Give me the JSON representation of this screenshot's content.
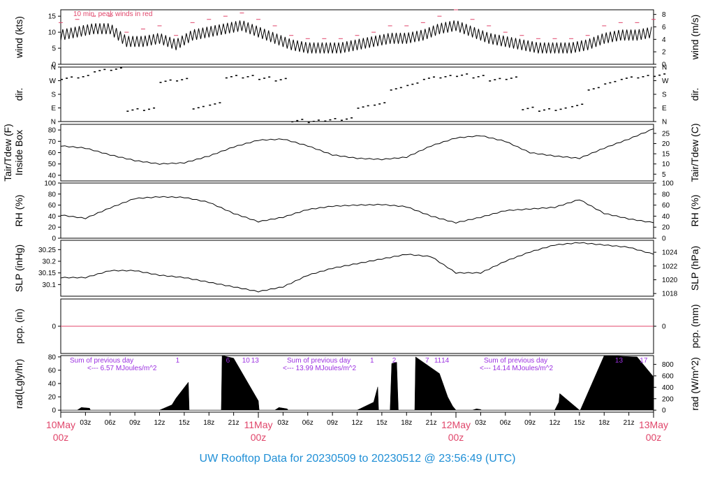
{
  "footer": "UW Rooftop Data for 20230509  to  20230512 @ 23:56:49  (UTC)",
  "colors": {
    "frame": "#000000",
    "accent": "#e0456a",
    "footer": "#1f8fd6",
    "solar_note": "#9b30e0",
    "precip_line": "#e0456a"
  },
  "x_axis": {
    "hour_ticks": [
      "03z",
      "06z",
      "09z",
      "12z",
      "15z",
      "18z",
      "21z",
      "03z",
      "06z",
      "09z",
      "12z",
      "15z",
      "18z",
      "21z",
      "03z",
      "06z",
      "09z",
      "12z",
      "15z",
      "18z",
      "21z"
    ],
    "hour_positions": [
      3,
      6,
      9,
      12,
      15,
      18,
      21,
      27,
      30,
      33,
      36,
      39,
      42,
      45,
      51,
      54,
      57,
      60,
      63,
      66,
      69
    ],
    "days": [
      {
        "date": "10May",
        "time": "00z",
        "hour": 0
      },
      {
        "date": "11May",
        "time": "00z",
        "hour": 24
      },
      {
        "date": "12May",
        "time": "00z",
        "hour": 48
      },
      {
        "date": "13May",
        "time": "00z",
        "hour": 72
      }
    ],
    "range_hours": [
      0,
      72
    ]
  },
  "chart_data": [
    {
      "id": "wind",
      "type": "line",
      "ylabel_left": "wind (kts)",
      "ylabel_right": "wind (m/s)",
      "ylim": [
        0,
        17
      ],
      "yticks_left": [
        0,
        5,
        10,
        15
      ],
      "yticks_right": [
        0,
        2,
        4,
        6,
        8
      ],
      "right_scale": 0.5144,
      "annotation": "10 min. peak winds in red",
      "x": [
        0,
        2,
        4,
        6,
        8,
        10,
        12,
        14,
        16,
        18,
        20,
        22,
        24,
        26,
        28,
        30,
        32,
        34,
        36,
        38,
        40,
        42,
        44,
        46,
        48,
        50,
        52,
        54,
        56,
        58,
        60,
        62,
        64,
        66,
        68,
        70,
        72
      ],
      "series": [
        {
          "name": "mean",
          "values": [
            9,
            10,
            11,
            11,
            7,
            7,
            8,
            6,
            9,
            10,
            11,
            12,
            10,
            8,
            6,
            5,
            5,
            5,
            6,
            7,
            8,
            8,
            9,
            11,
            12,
            10,
            8,
            7,
            6,
            5,
            5,
            5,
            6,
            8,
            9,
            9,
            10
          ]
        },
        {
          "name": "peak",
          "values": [
            13,
            14,
            15,
            15,
            10,
            11,
            12,
            9,
            13,
            14,
            15,
            16,
            14,
            12,
            9,
            8,
            8,
            8,
            9,
            10,
            12,
            12,
            13,
            15,
            17,
            14,
            12,
            10,
            9,
            8,
            8,
            8,
            9,
            12,
            13,
            13,
            14
          ]
        }
      ]
    },
    {
      "id": "dir",
      "type": "scatter",
      "ylabel_left": "dir.",
      "ylabel_right": "dir.",
      "ylim": [
        0,
        360
      ],
      "yticks_left": [
        "N",
        "E",
        "S",
        "W",
        "N"
      ],
      "yticks_right": [
        "N",
        "E",
        "S",
        "W",
        "N"
      ],
      "x": [
        0,
        2,
        4,
        6,
        8,
        10,
        12,
        14,
        16,
        18,
        20,
        22,
        24,
        26,
        28,
        30,
        32,
        34,
        36,
        38,
        40,
        42,
        44,
        46,
        48,
        50,
        52,
        54,
        56,
        58,
        60,
        62,
        64,
        66,
        68,
        70,
        72
      ],
      "values": [
        290,
        300,
        340,
        350,
        80,
        85,
        270,
        280,
        95,
        120,
        300,
        300,
        290,
        280,
        10,
        5,
        15,
        20,
        100,
        120,
        220,
        250,
        290,
        300,
        310,
        300,
        280,
        290,
        90,
        80,
        85,
        110,
        220,
        260,
        290,
        300,
        310
      ]
    },
    {
      "id": "temp",
      "type": "line",
      "ylabel_left": "Tair/Tdew (F) Inside Box",
      "ylabel_right": "Tair/Tdew (C)",
      "ylim": [
        35,
        85
      ],
      "yticks_left": [
        40,
        50,
        60,
        70,
        80
      ],
      "yticks_right": [
        5,
        10,
        15,
        20,
        25
      ],
      "x": [
        0,
        3,
        6,
        9,
        12,
        15,
        18,
        21,
        24,
        27,
        30,
        33,
        36,
        39,
        42,
        45,
        48,
        51,
        54,
        57,
        60,
        63,
        66,
        69,
        72
      ],
      "values": [
        66,
        64,
        58,
        53,
        50,
        51,
        57,
        65,
        71,
        72,
        66,
        58,
        55,
        54,
        56,
        66,
        73,
        75,
        70,
        60,
        57,
        55,
        64,
        72,
        81
      ]
    },
    {
      "id": "rh",
      "type": "line",
      "ylabel_left": "RH (%)",
      "ylabel_right": "RH (%)",
      "ylim": [
        0,
        100
      ],
      "yticks_left": [
        0,
        20,
        40,
        60,
        80,
        100
      ],
      "yticks_right": [
        0,
        20,
        40,
        60,
        80,
        100
      ],
      "x": [
        0,
        3,
        6,
        9,
        12,
        15,
        18,
        21,
        24,
        27,
        30,
        33,
        36,
        39,
        42,
        45,
        48,
        51,
        54,
        57,
        60,
        63,
        66,
        69,
        72
      ],
      "values": [
        42,
        36,
        55,
        72,
        75,
        74,
        65,
        45,
        30,
        38,
        52,
        58,
        60,
        61,
        57,
        40,
        28,
        38,
        50,
        53,
        56,
        70,
        45,
        35,
        28
      ]
    },
    {
      "id": "slp",
      "type": "line",
      "ylabel_left": "SLP (inHg)",
      "ylabel_right": "SLP (hPa)",
      "ylim": [
        30.05,
        30.29
      ],
      "yticks_left": [
        30.1,
        30.15,
        30.2,
        30.25
      ],
      "yticks_right": [
        1018,
        1020,
        1022,
        1024
      ],
      "x": [
        0,
        3,
        6,
        9,
        12,
        15,
        18,
        21,
        24,
        27,
        30,
        33,
        36,
        39,
        42,
        45,
        48,
        51,
        54,
        57,
        60,
        63,
        66,
        69,
        72
      ],
      "values": [
        30.13,
        30.13,
        30.16,
        30.16,
        30.14,
        30.13,
        30.11,
        30.09,
        30.07,
        30.09,
        30.14,
        30.17,
        30.19,
        30.21,
        30.23,
        30.22,
        30.15,
        30.15,
        30.2,
        30.24,
        30.27,
        30.28,
        30.27,
        30.26,
        30.23
      ]
    },
    {
      "id": "pcp",
      "type": "line",
      "ylabel_left": "pcp. (in)",
      "ylabel_right": "pcp. (mm)",
      "ylim": [
        -1,
        1
      ],
      "yticks_left": [
        0
      ],
      "yticks_right": [
        0
      ],
      "x": [
        0,
        72
      ],
      "values": [
        0,
        0
      ]
    },
    {
      "id": "rad",
      "type": "area",
      "ylabel_left": "rad(Lgly/hr)",
      "ylabel_right": "rad (W/m^2)",
      "ylim": [
        -3,
        82
      ],
      "yticks_left": [
        0,
        20,
        40,
        60,
        80
      ],
      "yticks_right": [
        0,
        200,
        400,
        600,
        800
      ],
      "x": [
        0,
        2,
        2.5,
        3.5,
        3.6,
        12,
        13.5,
        14,
        15.5,
        15.6,
        19.5,
        19.6,
        21,
        24,
        24.1,
        26,
        26.5,
        27.5,
        27.6,
        36,
        38,
        38.5,
        38.6,
        40,
        40.2,
        40.8,
        41,
        43,
        43.1,
        46,
        47,
        47.6,
        48,
        48.1,
        50,
        50.5,
        51,
        51.1,
        58,
        60,
        60.5,
        60.6,
        63,
        63.1,
        66,
        70,
        72
      ],
      "values": [
        0,
        0,
        4,
        3,
        0,
        0,
        8,
        18,
        42,
        0,
        0,
        82,
        78,
        14,
        0,
        0,
        4,
        2,
        0,
        0,
        12,
        35,
        0,
        0,
        70,
        72,
        0,
        0,
        80,
        55,
        20,
        6,
        0,
        0,
        0,
        2,
        1,
        0,
        0,
        0,
        12,
        25,
        0,
        0,
        82,
        80,
        50
      ],
      "annotations": [
        {
          "line1": "Sum of previous day",
          "line2": "<--- 6.57 MJoules/m^2"
        },
        {
          "line1": "Sum of previous day",
          "line2": "<--- 13.99 MJoules/m^2"
        },
        {
          "line1": "Sum of previous day",
          "line2": "<--- 14.14 MJoules/m^2"
        }
      ],
      "hour_marks": [
        {
          "label": "1",
          "hour": 14.2
        },
        {
          "label": "6",
          "hour": 20.3
        },
        {
          "label": "10",
          "hour": 22.5
        },
        {
          "label": "13",
          "hour": 23.6
        },
        {
          "label": "1",
          "hour": 37.8
        },
        {
          "label": "2",
          "hour": 40.5
        },
        {
          "label": "7",
          "hour": 44.5
        },
        {
          "label": "11",
          "hour": 45.8
        },
        {
          "label": "14",
          "hour": 46.7
        },
        {
          "label": "13",
          "hour": 67.8
        },
        {
          "label": "17",
          "hour": 70.8
        }
      ]
    }
  ]
}
